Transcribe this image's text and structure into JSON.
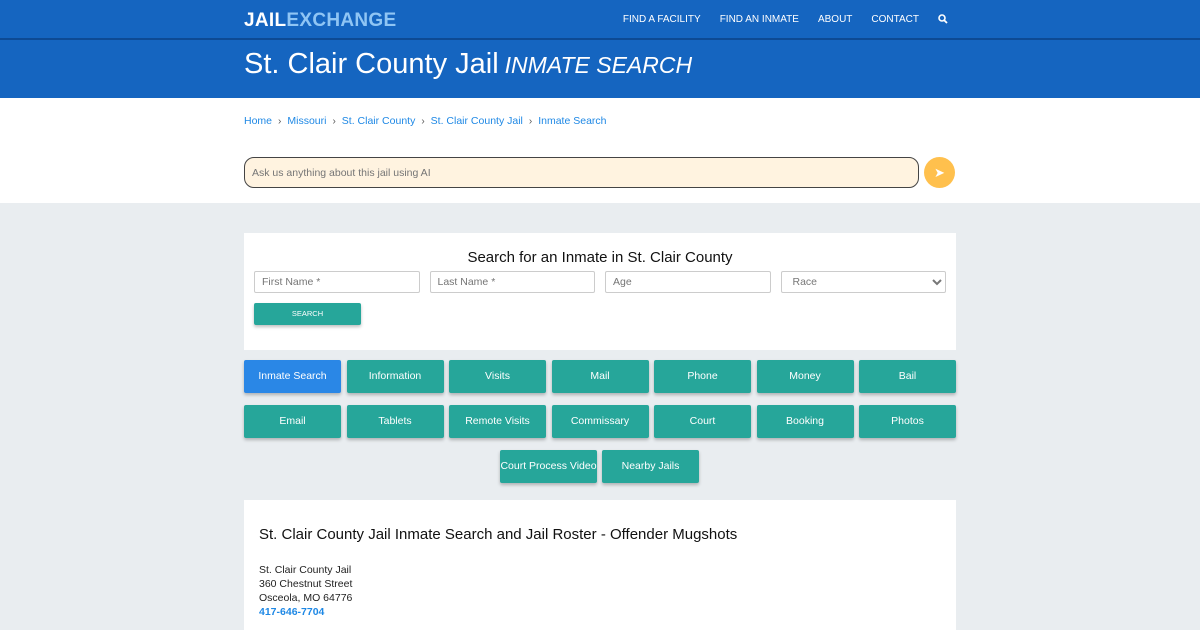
{
  "header": {
    "logo_part1": "JAIL",
    "logo_part2": "EXCHANGE",
    "nav": [
      "FIND A FACILITY",
      "FIND AN INMATE",
      "ABOUT",
      "CONTACT"
    ],
    "search_icon": "search-icon"
  },
  "title": {
    "main": "St. Clair County Jail",
    "sub": "INMATE SEARCH"
  },
  "breadcrumb": [
    "Home",
    "Missouri",
    "St. Clair County",
    "St. Clair County Jail",
    "Inmate Search"
  ],
  "ai": {
    "placeholder": "Ask us anything about this jail using AI",
    "send_icon": "paper-plane-icon"
  },
  "search": {
    "heading": "Search for an Inmate in St. Clair County",
    "first": "First Name *",
    "last": "Last Name *",
    "age": "Age",
    "race": "Race",
    "button": "SEARCH"
  },
  "buttons": [
    "Inmate Search",
    "Information",
    "Visits",
    "Mail",
    "Phone",
    "Money",
    "Bail",
    "Email",
    "Tablets",
    "Remote Visits",
    "Commissary",
    "Court",
    "Booking",
    "Photos"
  ],
  "buttons_extra": [
    "Court Process Video",
    "Nearby Jails"
  ],
  "content": {
    "heading": "St. Clair County Jail Inmate Search and Jail Roster - Offender Mugshots",
    "name": "St. Clair County Jail",
    "street": "360 Chestnut Street",
    "city": "Osceola, MO 64776",
    "phone": "417-646-7704"
  },
  "colors": {
    "brand": "#1565c0",
    "teal": "#26a69a",
    "active": "#2a87e6",
    "ai_bg": "#fff3e0",
    "send": "#ffc04d"
  }
}
